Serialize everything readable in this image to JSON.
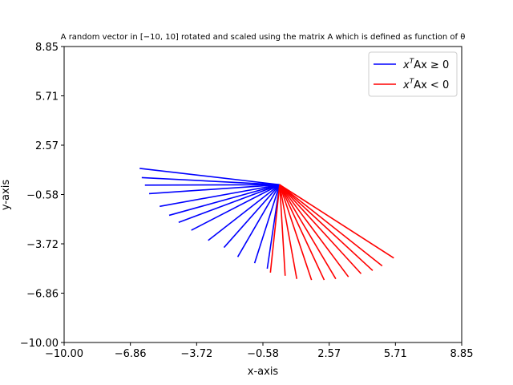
{
  "chart_data": {
    "type": "line",
    "title": "A random vector in [−10, 10] rotated and scaled using the matrix A which is defined as function of θ",
    "xlabel": "x-axis",
    "ylabel": "y-axis",
    "xlim": [
      -10.0,
      8.85
    ],
    "ylim": [
      -10.0,
      8.85
    ],
    "xticks": [
      "−10.00",
      "−6.86",
      "−3.72",
      "−0.58",
      "2.57",
      "5.71",
      "8.85"
    ],
    "yticks": [
      "−10.00",
      "−6.86",
      "−3.72",
      "−0.58",
      "2.57",
      "5.71",
      "8.85"
    ],
    "grid": false,
    "legend_position": "top-right",
    "origin": [
      0.22,
      0.05
    ],
    "series": [
      {
        "name": "xᵀAx ≥ 0",
        "legend_prefix": "x",
        "legend_sup": "T",
        "legend_suffix": "Ax ≥ 0",
        "color": "#0000ff",
        "segments": [
          [
            -6.42,
            1.09
          ],
          [
            -6.32,
            0.5
          ],
          [
            -6.17,
            0.02
          ],
          [
            -5.97,
            -0.52
          ],
          [
            -5.47,
            -1.33
          ],
          [
            -5.02,
            -1.9
          ],
          [
            -4.57,
            -2.35
          ],
          [
            -3.97,
            -2.85
          ],
          [
            -3.17,
            -3.5
          ],
          [
            -2.42,
            -3.95
          ],
          [
            -1.77,
            -4.55
          ],
          [
            -0.97,
            -4.95
          ],
          [
            -0.37,
            -5.3
          ]
        ]
      },
      {
        "name": "xᵀAx < 0",
        "legend_prefix": "x",
        "legend_sup": "T",
        "legend_suffix": "Ax < 0",
        "color": "#ff0000",
        "segments": [
          [
            -0.22,
            -5.55
          ],
          [
            0.48,
            -5.75
          ],
          [
            1.03,
            -5.95
          ],
          [
            1.73,
            -6.02
          ],
          [
            2.33,
            -6.02
          ],
          [
            2.88,
            -5.95
          ],
          [
            3.48,
            -5.82
          ],
          [
            4.08,
            -5.62
          ],
          [
            4.63,
            -5.42
          ],
          [
            5.08,
            -5.12
          ],
          [
            5.63,
            -4.62
          ]
        ]
      }
    ]
  }
}
